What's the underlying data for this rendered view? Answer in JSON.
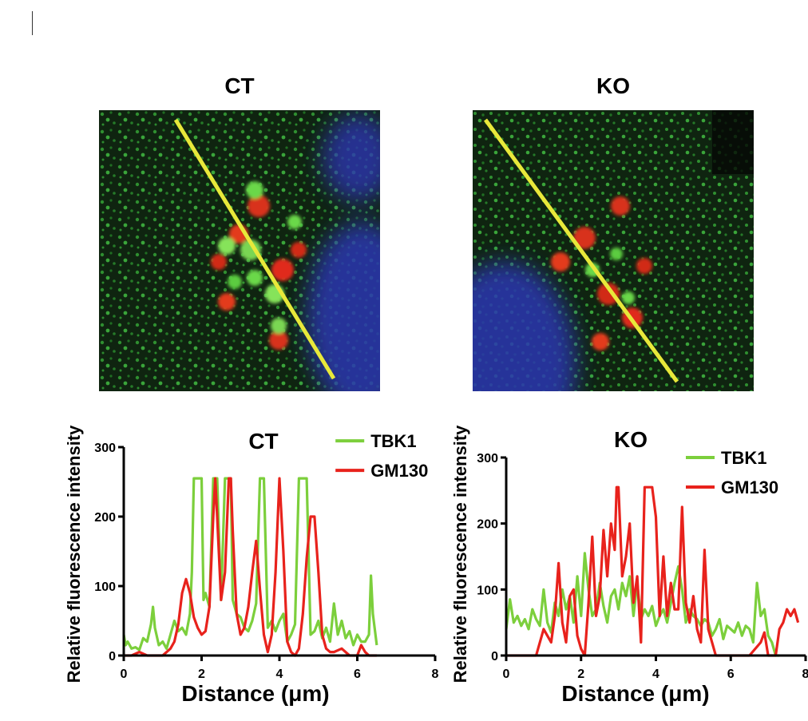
{
  "panels": [
    {
      "title": "CT",
      "image_alt": "CT confocal image: TBK1 green, GM130 red, nuclei blue, with yellow line scan"
    },
    {
      "title": "KO",
      "image_alt": "KO confocal image: TBK1 green, GM130 red, nuclei blue, with yellow line scan"
    }
  ],
  "colors": {
    "tbk1": "#7ccf3c",
    "gm130": "#e8221c",
    "scanline": "#e8e83a",
    "nucleus": "#2233aa"
  },
  "chart_data": [
    {
      "type": "line",
      "title": "CT",
      "xlabel": "Distance (μm)",
      "ylabel": "Relative fluorescence intensity",
      "xlim": [
        0,
        8
      ],
      "ylim": [
        0,
        300
      ],
      "xticks": [
        0,
        2,
        4,
        6,
        8
      ],
      "yticks": [
        0,
        100,
        200,
        300
      ],
      "legend": "top-right",
      "series": [
        {
          "name": "TBK1",
          "color": "#7ccf3c",
          "x": [
            0,
            0.05,
            0.1,
            0.2,
            0.3,
            0.4,
            0.5,
            0.6,
            0.7,
            0.75,
            0.8,
            0.9,
            1.0,
            1.1,
            1.2,
            1.3,
            1.4,
            1.5,
            1.6,
            1.7,
            1.75,
            1.8,
            1.9,
            2.0,
            2.05,
            2.1,
            2.2,
            2.3,
            2.4,
            2.5,
            2.6,
            2.7,
            2.75,
            2.8,
            2.9,
            3.0,
            3.1,
            3.2,
            3.3,
            3.4,
            3.5,
            3.55,
            3.6,
            3.7,
            3.8,
            3.9,
            4.0,
            4.1,
            4.2,
            4.3,
            4.4,
            4.5,
            4.55,
            4.6,
            4.7,
            4.8,
            4.9,
            5.0,
            5.1,
            5.2,
            5.3,
            5.4,
            5.5,
            5.6,
            5.7,
            5.8,
            5.9,
            6.0,
            6.1,
            6.2,
            6.3,
            6.35,
            6.4,
            6.5
          ],
          "values": [
            30,
            15,
            20,
            10,
            12,
            8,
            25,
            20,
            45,
            70,
            40,
            15,
            20,
            10,
            30,
            50,
            35,
            40,
            30,
            60,
            120,
            255,
            255,
            255,
            80,
            90,
            70,
            255,
            255,
            80,
            255,
            255,
            255,
            80,
            60,
            55,
            40,
            35,
            50,
            75,
            255,
            255,
            255,
            40,
            50,
            35,
            50,
            60,
            20,
            30,
            45,
            255,
            255,
            255,
            255,
            30,
            35,
            50,
            25,
            40,
            20,
            75,
            30,
            50,
            25,
            35,
            15,
            30,
            20,
            20,
            30,
            115,
            60,
            15
          ]
        },
        {
          "name": "GM130",
          "color": "#e8221c",
          "x": [
            0,
            0.2,
            0.4,
            0.6,
            0.8,
            1.0,
            1.2,
            1.3,
            1.4,
            1.5,
            1.6,
            1.7,
            1.8,
            1.9,
            2.0,
            2.1,
            2.2,
            2.3,
            2.35,
            2.4,
            2.5,
            2.6,
            2.7,
            2.75,
            2.8,
            2.9,
            3.0,
            3.1,
            3.2,
            3.3,
            3.4,
            3.5,
            3.6,
            3.7,
            3.8,
            3.9,
            4.0,
            4.1,
            4.2,
            4.3,
            4.4,
            4.5,
            4.6,
            4.7,
            4.8,
            4.9,
            5.0,
            5.1,
            5.2,
            5.3,
            5.4,
            5.6,
            5.8,
            6.0,
            6.1,
            6.2,
            6.3,
            6.4,
            6.5
          ],
          "values": [
            0,
            0,
            5,
            0,
            0,
            0,
            10,
            20,
            45,
            90,
            110,
            90,
            55,
            40,
            30,
            35,
            70,
            200,
            255,
            200,
            80,
            120,
            255,
            255,
            180,
            60,
            30,
            40,
            70,
            120,
            165,
            95,
            30,
            5,
            30,
            120,
            255,
            150,
            20,
            5,
            0,
            10,
            60,
            140,
            200,
            200,
            120,
            30,
            10,
            5,
            5,
            10,
            0,
            0,
            15,
            5,
            0,
            0,
            0
          ]
        }
      ]
    },
    {
      "type": "line",
      "title": "KO",
      "xlabel": "Distance (μm)",
      "ylabel": "Relative fluorescence intensity",
      "xlim": [
        0,
        8
      ],
      "ylim": [
        0,
        300
      ],
      "xticks": [
        0,
        2,
        4,
        6,
        8
      ],
      "yticks": [
        0,
        100,
        200,
        300
      ],
      "legend": "top-right",
      "series": [
        {
          "name": "TBK1",
          "color": "#7ccf3c",
          "x": [
            0,
            0.1,
            0.2,
            0.3,
            0.4,
            0.5,
            0.6,
            0.7,
            0.8,
            0.9,
            1.0,
            1.1,
            1.2,
            1.3,
            1.4,
            1.5,
            1.6,
            1.7,
            1.8,
            1.9,
            2.0,
            2.1,
            2.2,
            2.3,
            2.4,
            2.5,
            2.6,
            2.7,
            2.8,
            2.9,
            3.0,
            3.1,
            3.2,
            3.3,
            3.4,
            3.5,
            3.6,
            3.7,
            3.8,
            3.9,
            4.0,
            4.1,
            4.2,
            4.3,
            4.4,
            4.5,
            4.6,
            4.7,
            4.8,
            4.9,
            5.0,
            5.1,
            5.2,
            5.3,
            5.4,
            5.5,
            5.6,
            5.7,
            5.8,
            5.9,
            6.0,
            6.1,
            6.2,
            6.3,
            6.4,
            6.5,
            6.6,
            6.7,
            6.8,
            6.9,
            7.0,
            7.1,
            7.2,
            7.3
          ],
          "values": [
            40,
            85,
            50,
            60,
            45,
            55,
            40,
            70,
            55,
            45,
            100,
            50,
            35,
            80,
            60,
            100,
            70,
            90,
            50,
            120,
            60,
            155,
            100,
            60,
            70,
            110,
            75,
            50,
            90,
            100,
            70,
            110,
            90,
            120,
            60,
            110,
            55,
            70,
            60,
            75,
            45,
            60,
            70,
            50,
            80,
            110,
            135,
            100,
            50,
            70,
            60,
            55,
            45,
            55,
            50,
            30,
            40,
            55,
            25,
            45,
            40,
            35,
            50,
            30,
            45,
            40,
            20,
            110,
            60,
            70,
            30,
            20,
            0,
            0
          ]
        },
        {
          "name": "GM130",
          "color": "#e8221c",
          "x": [
            0,
            0.4,
            0.8,
            1.0,
            1.1,
            1.2,
            1.3,
            1.4,
            1.5,
            1.6,
            1.7,
            1.8,
            1.9,
            2.0,
            2.1,
            2.2,
            2.3,
            2.4,
            2.5,
            2.6,
            2.7,
            2.8,
            2.9,
            2.95,
            3.0,
            3.1,
            3.2,
            3.3,
            3.4,
            3.5,
            3.6,
            3.7,
            3.75,
            3.8,
            3.9,
            4.0,
            4.1,
            4.2,
            4.3,
            4.4,
            4.5,
            4.6,
            4.7,
            4.8,
            4.9,
            5.0,
            5.1,
            5.2,
            5.3,
            5.4,
            5.6,
            6.0,
            6.5,
            6.8,
            6.9,
            7.0,
            7.1,
            7.2,
            7.3,
            7.4,
            7.5,
            7.6,
            7.7,
            7.8
          ],
          "values": [
            0,
            0,
            0,
            40,
            30,
            20,
            60,
            140,
            50,
            20,
            90,
            100,
            30,
            10,
            0,
            80,
            180,
            60,
            90,
            190,
            120,
            200,
            160,
            255,
            255,
            120,
            150,
            200,
            80,
            120,
            20,
            255,
            255,
            255,
            255,
            210,
            60,
            150,
            60,
            110,
            70,
            70,
            225,
            80,
            50,
            90,
            40,
            20,
            160,
            40,
            0,
            0,
            0,
            20,
            35,
            0,
            0,
            0,
            40,
            50,
            70,
            60,
            70,
            50
          ]
        }
      ]
    }
  ]
}
